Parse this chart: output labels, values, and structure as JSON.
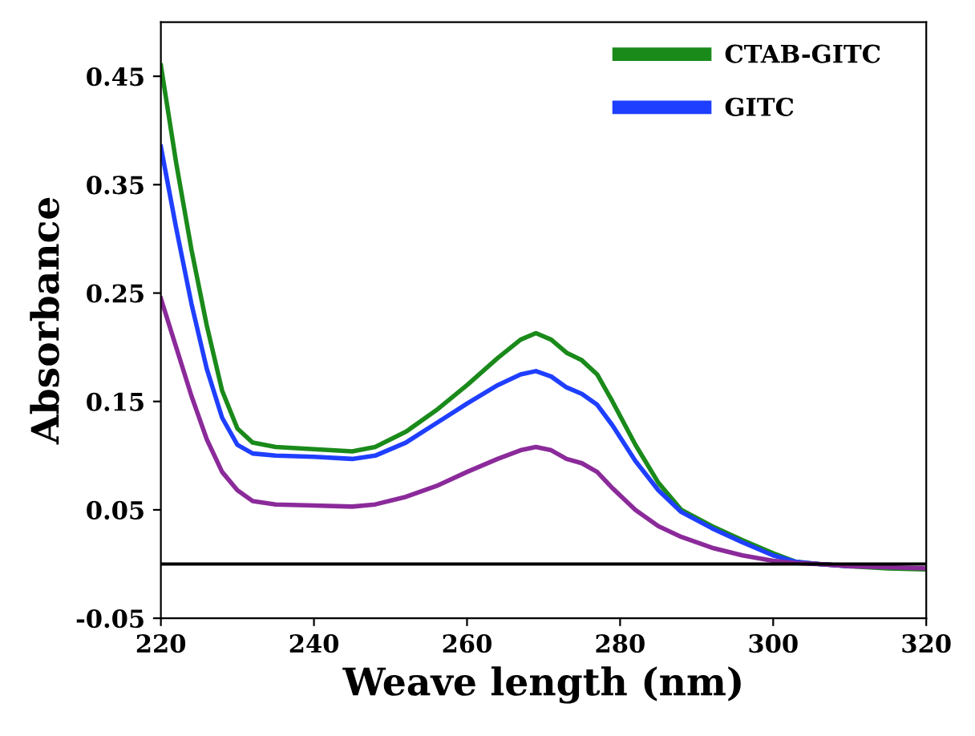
{
  "chart_data": {
    "type": "line",
    "xlabel": "Weave length (nm)",
    "ylabel": "Absorbance",
    "x": [
      220,
      222,
      224,
      226,
      228,
      230,
      232,
      235,
      240,
      245,
      248,
      252,
      256,
      260,
      264,
      267,
      269,
      271,
      273,
      275,
      277,
      279,
      282,
      285,
      288,
      292,
      296,
      300,
      303,
      306,
      310,
      315,
      320
    ],
    "series": [
      {
        "name": "CTAB-GITC",
        "color": "#1a8a1a",
        "values": [
          0.46,
          0.37,
          0.29,
          0.22,
          0.16,
          0.125,
          0.112,
          0.108,
          0.106,
          0.104,
          0.108,
          0.122,
          0.142,
          0.165,
          0.19,
          0.207,
          0.213,
          0.207,
          0.195,
          0.188,
          0.175,
          0.15,
          0.11,
          0.075,
          0.05,
          0.035,
          0.022,
          0.01,
          0.002,
          0.0,
          -0.002,
          -0.004,
          -0.005
        ]
      },
      {
        "name": "GITC",
        "color": "#1f3fff",
        "values": [
          0.385,
          0.31,
          0.24,
          0.18,
          0.135,
          0.11,
          0.102,
          0.1,
          0.099,
          0.097,
          0.1,
          0.112,
          0.13,
          0.148,
          0.165,
          0.175,
          0.178,
          0.173,
          0.163,
          0.157,
          0.147,
          0.128,
          0.095,
          0.068,
          0.048,
          0.033,
          0.02,
          0.008,
          0.002,
          0.0,
          -0.002,
          null,
          null
        ]
      },
      {
        "color": "#8b2a9a",
        "values": [
          0.245,
          0.2,
          0.155,
          0.115,
          0.085,
          0.068,
          0.058,
          0.055,
          0.054,
          0.053,
          0.055,
          0.062,
          0.072,
          0.085,
          0.097,
          0.105,
          0.108,
          0.105,
          0.097,
          0.093,
          0.085,
          0.07,
          0.05,
          0.035,
          0.025,
          0.015,
          0.008,
          0.003,
          0.001,
          0.0,
          -0.002,
          -0.003,
          -0.004
        ]
      }
    ],
    "xlim": [
      220,
      320
    ],
    "xticks": [
      220,
      240,
      260,
      280,
      300,
      320
    ],
    "ylim": [
      -0.05,
      0.5
    ],
    "yticks": [
      -0.05,
      0.05,
      0.15,
      0.25,
      0.35,
      0.45
    ],
    "ref_lines": [
      {
        "axis": "y",
        "value": 0,
        "color": "#000000"
      }
    ],
    "legend": "top right",
    "grid": false
  }
}
